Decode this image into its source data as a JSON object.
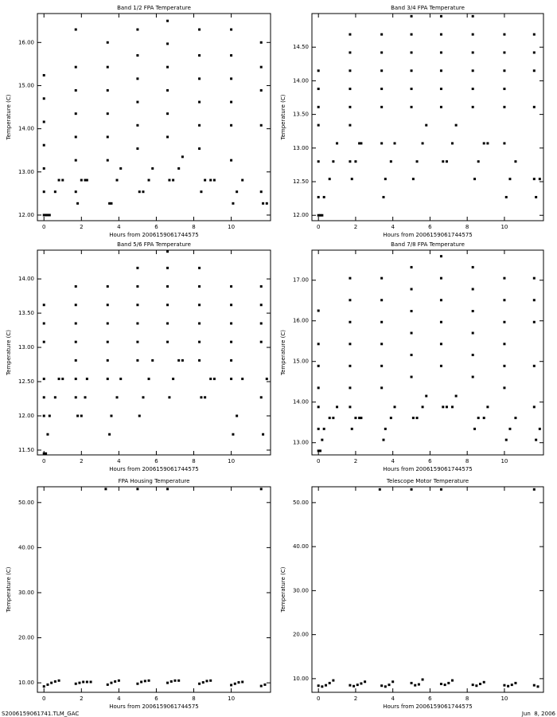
{
  "chart_data": [
    {
      "type": "scatter",
      "title": "Band 1/2 FPA Temperature",
      "x_label": "Hours from 2006159061744575",
      "y_label": "Temperature (C)",
      "color": "#000000",
      "xlim": [
        -0.35,
        12.1
      ],
      "xticks": [
        0,
        2,
        4,
        6,
        8,
        10
      ],
      "ylim": [
        11.87,
        16.67
      ],
      "yticks": [
        {
          "value": 12,
          "label": "12.00"
        },
        {
          "value": 13,
          "label": "13.00"
        },
        {
          "value": 14,
          "label": "14.00"
        },
        {
          "value": 15,
          "label": "15.00"
        },
        {
          "value": 16,
          "label": "16.00"
        }
      ],
      "x": [
        0,
        0,
        0,
        0,
        0,
        0,
        0,
        0.1,
        0.2,
        0.3,
        0.6,
        0.8,
        1.0,
        1.7,
        1.7,
        1.7,
        1.7,
        1.7,
        1.7,
        1.7,
        1.8,
        2.0,
        2.2,
        2.3,
        3.4,
        3.4,
        3.4,
        3.4,
        3.4,
        3.4,
        3.5,
        3.6,
        3.9,
        4.1,
        5.0,
        5.0,
        5.0,
        5.0,
        5.0,
        5.0,
        5.1,
        5.3,
        5.6,
        5.8,
        6.6,
        6.6,
        6.6,
        6.6,
        6.6,
        6.6,
        6.7,
        6.9,
        7.2,
        7.4,
        8.3,
        8.3,
        8.3,
        8.3,
        8.3,
        8.3,
        8.4,
        8.6,
        8.9,
        9.1,
        10.0,
        10.0,
        10.0,
        10.0,
        10.0,
        10.0,
        10.1,
        10.3,
        10.6,
        11.6,
        11.6,
        11.6,
        11.6,
        11.6,
        11.7,
        11.9
      ],
      "values": [
        15.24,
        14.7,
        14.16,
        13.62,
        13.08,
        12.54,
        12.0,
        12.0,
        12.0,
        12.0,
        12.54,
        12.81,
        12.81,
        16.3,
        15.43,
        14.89,
        14.35,
        13.81,
        13.27,
        12.54,
        12.27,
        12.81,
        12.81,
        12.81,
        16.0,
        15.43,
        14.89,
        14.35,
        13.81,
        13.27,
        12.27,
        12.27,
        12.81,
        13.08,
        16.3,
        15.7,
        15.16,
        14.62,
        14.08,
        13.54,
        12.54,
        12.54,
        12.81,
        13.08,
        16.5,
        15.97,
        15.43,
        14.89,
        14.35,
        13.81,
        12.81,
        12.81,
        13.08,
        13.35,
        16.3,
        15.7,
        15.16,
        14.62,
        14.08,
        13.54,
        12.54,
        12.81,
        12.81,
        12.81,
        16.3,
        15.7,
        15.16,
        14.62,
        14.08,
        13.27,
        12.27,
        12.54,
        12.81,
        16.0,
        15.43,
        14.89,
        14.08,
        12.54,
        12.27,
        12.27
      ]
    },
    {
      "type": "scatter",
      "title": "Band 3/4 FPA Temperature",
      "x_label": "Hours from 2006159061744575",
      "y_label": "Temperature (C)",
      "color": "#000000",
      "xlim": [
        -0.35,
        12.1
      ],
      "xticks": [
        0,
        2,
        4,
        6,
        8,
        10
      ],
      "ylim": [
        11.92,
        15.0
      ],
      "yticks": [
        {
          "value": 12,
          "label": "12.00"
        },
        {
          "value": 12.5,
          "label": "12.50"
        },
        {
          "value": 13,
          "label": "13.00"
        },
        {
          "value": 13.5,
          "label": "13.50"
        },
        {
          "value": 14,
          "label": "14.00"
        },
        {
          "value": 14.5,
          "label": "14.50"
        }
      ],
      "x": [
        0,
        0,
        0,
        0,
        0,
        0,
        0,
        0.1,
        0.2,
        0.3,
        0.6,
        0.8,
        1.0,
        1.7,
        1.7,
        1.7,
        1.7,
        1.7,
        1.7,
        1.7,
        1.8,
        2.0,
        2.2,
        2.3,
        3.4,
        3.4,
        3.4,
        3.4,
        3.4,
        3.4,
        3.5,
        3.6,
        3.9,
        4.1,
        5.0,
        5.0,
        5.0,
        5.0,
        5.0,
        5.0,
        5.1,
        5.3,
        5.6,
        5.8,
        6.6,
        6.6,
        6.6,
        6.6,
        6.6,
        6.6,
        6.7,
        6.9,
        7.2,
        7.4,
        8.3,
        8.3,
        8.3,
        8.3,
        8.3,
        8.3,
        8.4,
        8.6,
        8.9,
        9.1,
        10.0,
        10.0,
        10.0,
        10.0,
        10.0,
        10.0,
        10.1,
        10.3,
        10.6,
        11.6,
        11.6,
        11.6,
        11.6,
        11.6,
        11.7,
        11.9
      ],
      "values": [
        14.15,
        13.88,
        13.61,
        13.34,
        12.8,
        12.27,
        12.0,
        12.0,
        12.0,
        12.27,
        12.54,
        12.8,
        13.07,
        14.69,
        14.42,
        14.15,
        13.88,
        13.61,
        13.34,
        12.8,
        12.54,
        12.8,
        13.07,
        13.07,
        14.69,
        14.42,
        14.15,
        13.88,
        13.61,
        13.07,
        12.27,
        12.54,
        12.8,
        13.07,
        14.96,
        14.69,
        14.42,
        14.15,
        13.88,
        13.61,
        12.54,
        12.8,
        13.07,
        13.34,
        14.96,
        14.69,
        14.42,
        14.15,
        13.88,
        13.61,
        12.8,
        12.8,
        13.07,
        13.34,
        14.96,
        14.69,
        14.42,
        14.15,
        13.88,
        13.61,
        12.54,
        12.8,
        13.07,
        13.07,
        14.69,
        14.42,
        14.15,
        13.88,
        13.61,
        13.07,
        12.27,
        12.54,
        12.8,
        14.69,
        14.42,
        14.15,
        13.61,
        12.54,
        12.27,
        12.54
      ]
    },
    {
      "type": "scatter",
      "title": "Band 5/6 FPA Temperature",
      "x_label": "Hours from 2006159061744575",
      "y_label": "Temperature (C)",
      "color": "#000000",
      "xlim": [
        -0.35,
        12.1
      ],
      "xticks": [
        0,
        2,
        4,
        6,
        8,
        10
      ],
      "ylim": [
        11.43,
        14.42
      ],
      "yticks": [
        {
          "value": 11.5,
          "label": "11.50"
        },
        {
          "value": 12,
          "label": "12.00"
        },
        {
          "value": 12.5,
          "label": "12.50"
        },
        {
          "value": 13,
          "label": "13.00"
        },
        {
          "value": 13.5,
          "label": "13.50"
        },
        {
          "value": 14,
          "label": "14.00"
        }
      ],
      "x": [
        0,
        0,
        0,
        0,
        0,
        0,
        0,
        0.1,
        0.2,
        0.3,
        0.6,
        0.8,
        1.0,
        1.7,
        1.7,
        1.7,
        1.7,
        1.7,
        1.7,
        1.7,
        1.8,
        2.0,
        2.2,
        2.3,
        3.4,
        3.4,
        3.4,
        3.4,
        3.4,
        3.4,
        3.5,
        3.6,
        3.9,
        4.1,
        5.0,
        5.0,
        5.0,
        5.0,
        5.0,
        5.0,
        5.1,
        5.3,
        5.6,
        5.8,
        6.6,
        6.6,
        6.6,
        6.6,
        6.6,
        6.6,
        6.7,
        6.9,
        7.2,
        7.4,
        8.3,
        8.3,
        8.3,
        8.3,
        8.3,
        8.3,
        8.4,
        8.6,
        8.9,
        9.1,
        10.0,
        10.0,
        10.0,
        10.0,
        10.0,
        10.0,
        10.1,
        10.3,
        10.6,
        11.6,
        11.6,
        11.6,
        11.6,
        11.6,
        11.7,
        11.9
      ],
      "values": [
        13.62,
        13.35,
        13.08,
        12.54,
        12.27,
        12.0,
        11.45,
        11.45,
        11.73,
        12.0,
        12.27,
        12.54,
        12.54,
        13.89,
        13.62,
        13.35,
        13.08,
        12.81,
        12.54,
        12.27,
        12.0,
        12.0,
        12.27,
        12.54,
        13.89,
        13.62,
        13.35,
        13.08,
        12.81,
        12.54,
        11.73,
        12.0,
        12.27,
        12.54,
        14.16,
        13.89,
        13.62,
        13.35,
        13.08,
        12.81,
        12.0,
        12.27,
        12.54,
        12.81,
        14.4,
        14.16,
        13.89,
        13.62,
        13.35,
        13.08,
        12.27,
        12.54,
        12.81,
        12.81,
        14.16,
        13.89,
        13.62,
        13.35,
        13.08,
        12.81,
        12.27,
        12.27,
        12.54,
        12.54,
        13.89,
        13.62,
        13.35,
        13.08,
        12.81,
        12.54,
        11.73,
        12.0,
        12.54,
        13.89,
        13.62,
        13.35,
        13.08,
        12.27,
        11.73,
        12.54
      ]
    },
    {
      "type": "scatter",
      "title": "Band 7/8 FPA Temperature",
      "x_label": "Hours from 2006159061744575",
      "y_label": "Temperature (C)",
      "color": "#000000",
      "xlim": [
        -0.35,
        12.1
      ],
      "xticks": [
        0,
        2,
        4,
        6,
        8,
        10
      ],
      "ylim": [
        12.7,
        17.74
      ],
      "yticks": [
        {
          "value": 13,
          "label": "13.00"
        },
        {
          "value": 14,
          "label": "14.00"
        },
        {
          "value": 15,
          "label": "15.00"
        },
        {
          "value": 16,
          "label": "16.00"
        },
        {
          "value": 17,
          "label": "17.00"
        }
      ],
      "x": [
        0,
        0,
        0,
        0,
        0,
        0,
        0,
        0.1,
        0.2,
        0.3,
        0.6,
        0.8,
        1.0,
        1.7,
        1.7,
        1.7,
        1.7,
        1.7,
        1.7,
        1.7,
        1.8,
        2.0,
        2.2,
        2.3,
        3.4,
        3.4,
        3.4,
        3.4,
        3.4,
        3.4,
        3.5,
        3.6,
        3.9,
        4.1,
        5.0,
        5.0,
        5.0,
        5.0,
        5.0,
        5.0,
        5.1,
        5.3,
        5.6,
        5.8,
        6.6,
        6.6,
        6.6,
        6.6,
        6.6,
        6.6,
        6.7,
        6.9,
        7.2,
        7.4,
        8.3,
        8.3,
        8.3,
        8.3,
        8.3,
        8.3,
        8.4,
        8.6,
        8.9,
        9.1,
        10.0,
        10.0,
        10.0,
        10.0,
        10.0,
        10.0,
        10.1,
        10.3,
        10.6,
        11.6,
        11.6,
        11.6,
        11.6,
        11.6,
        11.7,
        11.9
      ],
      "values": [
        16.25,
        15.43,
        14.89,
        14.35,
        13.88,
        13.34,
        12.8,
        12.8,
        13.07,
        13.34,
        13.61,
        13.61,
        13.88,
        17.05,
        16.51,
        15.97,
        15.43,
        14.89,
        14.35,
        13.88,
        13.34,
        13.61,
        13.61,
        13.61,
        17.05,
        16.51,
        15.97,
        15.43,
        14.89,
        14.35,
        13.07,
        13.34,
        13.61,
        13.88,
        17.32,
        16.78,
        16.24,
        15.7,
        15.16,
        14.62,
        13.61,
        13.61,
        13.88,
        14.15,
        17.59,
        17.05,
        16.51,
        15.97,
        15.43,
        14.89,
        13.88,
        13.88,
        13.88,
        14.15,
        17.32,
        16.78,
        16.24,
        15.7,
        15.16,
        14.62,
        13.34,
        13.61,
        13.61,
        13.88,
        17.05,
        16.51,
        15.97,
        15.43,
        14.89,
        14.35,
        13.07,
        13.34,
        13.61,
        17.05,
        16.51,
        15.97,
        14.89,
        13.88,
        13.07,
        13.34
      ]
    },
    {
      "type": "scatter",
      "title": "FPA Housing Temperature",
      "x_label": "Hours from 2006159061744575",
      "y_label": "Temperature (C)",
      "color": "#000000",
      "xlim": [
        -0.35,
        12.1
      ],
      "xticks": [
        0,
        2,
        4,
        6,
        8,
        10
      ],
      "ylim": [
        7.9,
        53.5
      ],
      "yticks": [
        {
          "value": 10,
          "label": "10.00"
        },
        {
          "value": 20,
          "label": "20.00"
        },
        {
          "value": 30,
          "label": "30.00"
        },
        {
          "value": 40,
          "label": "40.00"
        },
        {
          "value": 50,
          "label": "50.00"
        }
      ],
      "x": [
        0,
        0.2,
        0.4,
        0.6,
        0.8,
        1.7,
        1.9,
        2.1,
        2.3,
        2.5,
        3.3,
        3.4,
        3.6,
        3.8,
        4.0,
        5.0,
        5.0,
        5.2,
        5.4,
        5.6,
        6.6,
        6.6,
        6.8,
        7.0,
        7.2,
        8.3,
        8.5,
        8.7,
        8.9,
        10.0,
        10.2,
        10.4,
        10.6,
        11.6,
        11.6,
        11.8
      ],
      "values": [
        9.2,
        9.6,
        10.0,
        10.3,
        10.5,
        9.8,
        10.0,
        10.2,
        10.2,
        10.2,
        53.0,
        9.6,
        10.0,
        10.3,
        10.5,
        53.0,
        9.8,
        10.2,
        10.4,
        10.5,
        53.0,
        10.0,
        10.3,
        10.5,
        10.5,
        9.8,
        10.1,
        10.4,
        10.5,
        9.5,
        9.8,
        10.1,
        10.2,
        53.0,
        9.3,
        9.6
      ]
    },
    {
      "type": "scatter",
      "title": "Telescope Motor Temperature",
      "x_label": "Hours from 2006159061744575",
      "y_label": "Temperature (C)",
      "color": "#000000",
      "xlim": [
        -0.35,
        12.1
      ],
      "xticks": [
        0,
        2,
        4,
        6,
        8,
        10
      ],
      "ylim": [
        6.9,
        53.6
      ],
      "yticks": [
        {
          "value": 10,
          "label": "10.00"
        },
        {
          "value": 20,
          "label": "20.00"
        },
        {
          "value": 30,
          "label": "30.00"
        },
        {
          "value": 40,
          "label": "40.00"
        },
        {
          "value": 50,
          "label": "50.00"
        }
      ],
      "x": [
        0,
        0.2,
        0.4,
        0.6,
        0.8,
        1.7,
        1.9,
        2.1,
        2.3,
        2.5,
        3.3,
        3.4,
        3.6,
        3.8,
        4.0,
        5.0,
        5.0,
        5.2,
        5.4,
        5.6,
        6.6,
        6.6,
        6.8,
        7.0,
        7.2,
        8.3,
        8.5,
        8.7,
        8.9,
        10.0,
        10.2,
        10.4,
        10.6,
        11.6,
        11.6,
        11.8
      ],
      "values": [
        8.4,
        8.2,
        8.5,
        9.0,
        9.6,
        8.5,
        8.3,
        8.6,
        8.9,
        9.3,
        53.0,
        8.4,
        8.2,
        8.6,
        9.3,
        53.0,
        9.0,
        8.5,
        8.7,
        9.8,
        53.0,
        8.8,
        8.6,
        9.0,
        9.6,
        8.6,
        8.4,
        8.8,
        9.2,
        8.5,
        8.3,
        8.6,
        9.0,
        53.0,
        8.5,
        8.2
      ]
    }
  ],
  "footer_left": "S2006159061741.TLM_GAC",
  "footer_right": "Jun  8, 2006"
}
